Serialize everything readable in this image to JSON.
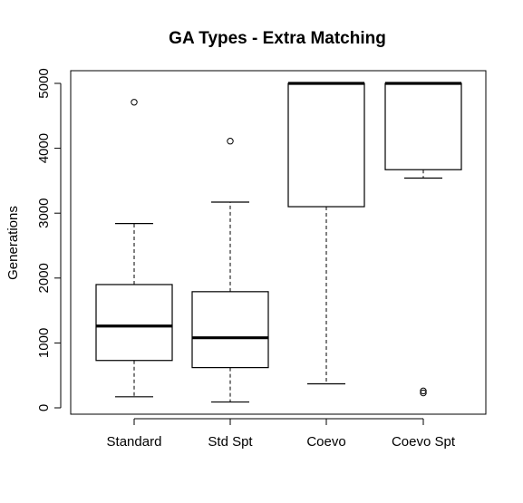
{
  "chart_data": {
    "type": "boxplot",
    "title": "GA Types - Extra Matching",
    "xlabel": "",
    "ylabel": "Generations",
    "ylim": [
      -100,
      5150
    ],
    "yticks": [
      0,
      1000,
      2000,
      3000,
      4000,
      5000
    ],
    "grid": false,
    "categories": [
      "Standard",
      "Std Spt",
      "Coevo",
      "Coevo Spt"
    ],
    "boxes": [
      {
        "category": "Standard",
        "whisker_low": 170,
        "q1": 730,
        "median": 1260,
        "q3": 1900,
        "whisker_high": 2840,
        "outliers": [
          4710
        ]
      },
      {
        "category": "Std Spt",
        "whisker_low": 90,
        "q1": 620,
        "median": 1080,
        "q3": 1790,
        "whisker_high": 3170,
        "outliers": [
          4110
        ]
      },
      {
        "category": "Coevo",
        "whisker_low": 370,
        "q1": 3100,
        "median": 5000,
        "q3": 5000,
        "whisker_high": 5000,
        "outliers": []
      },
      {
        "category": "Coevo Spt",
        "whisker_low": 3540,
        "q1": 3670,
        "median": 5000,
        "q3": 5000,
        "whisker_high": 5000,
        "outliers": [
          230,
          260
        ]
      }
    ]
  }
}
